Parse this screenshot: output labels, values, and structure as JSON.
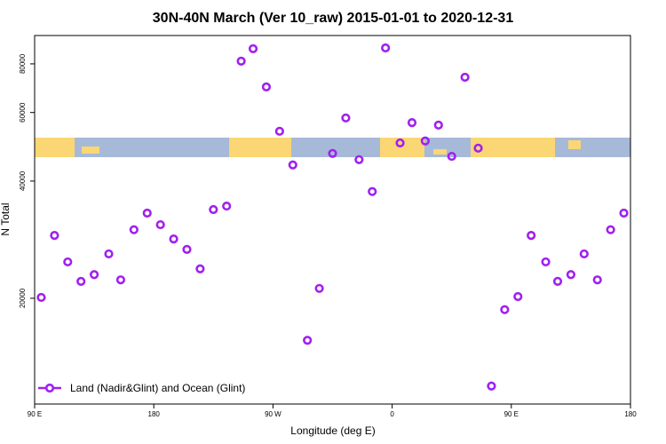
{
  "chart_data": {
    "type": "scatter",
    "title": "30N-40N March (Ver 10_raw)   2015-01-01 to 2020-12-31",
    "x_label": "Longitude (deg E)",
    "y_label": "N Total",
    "xlim": [
      90,
      540
    ],
    "xticks": [
      {
        "value": 90,
        "label": "90 E"
      },
      {
        "value": 180,
        "label": "180"
      },
      {
        "value": 270,
        "label": "90 W"
      },
      {
        "value": 360,
        "label": "0"
      },
      {
        "value": 450,
        "label": "90 E"
      },
      {
        "value": 540,
        "label": "180"
      }
    ],
    "ylim": [
      10700,
      94600
    ],
    "yticks": [
      20000,
      40000,
      60000,
      80000
    ],
    "y_log": true,
    "legend": "bottomleft",
    "series": [
      {
        "name": "Land (Nadir&Glint) and Ocean (Glint)",
        "color": "#a020f0",
        "x": [
          95,
          105,
          115,
          125,
          135,
          146,
          155,
          165,
          175,
          185,
          195,
          205,
          215,
          225,
          235,
          246,
          255,
          265,
          275,
          285,
          296,
          305,
          315,
          325,
          335,
          345,
          355,
          366,
          375,
          385,
          395,
          405,
          415,
          425,
          435,
          445,
          455,
          465,
          476,
          485,
          495,
          505,
          515,
          525,
          535
        ],
        "values": [
          20100,
          29000,
          24800,
          22100,
          23000,
          26000,
          22300,
          30000,
          33100,
          30900,
          28400,
          26700,
          23800,
          33800,
          34500,
          81300,
          87500,
          69800,
          53700,
          44000,
          15600,
          21200,
          47100,
          58100,
          45400,
          37600,
          87900,
          50100,
          56500,
          50700,
          55700,
          46300,
          73900,
          48600,
          11900,
          18700,
          20200,
          29000,
          24800,
          22100,
          23000,
          26000,
          22300,
          30000,
          33100
        ]
      }
    ]
  }
}
